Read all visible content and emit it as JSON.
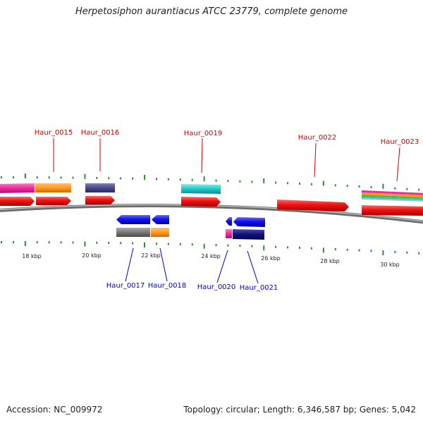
{
  "title": "Herpetosiphon aurantiacus ATCC 23779, complete genome",
  "footer": {
    "accession": "Accession: NC_009972",
    "summary": "Topology: circular; Length: 6,346,587 bp; Genes: 5,042"
  },
  "scale_labels": [
    "18 kbp",
    "20 kbp",
    "22 kbp",
    "24 kbp",
    "26 kbp",
    "28 kbp",
    "30 kbp"
  ],
  "genes_forward": [
    "Haur_0015",
    "Haur_0016",
    "Haur_0019",
    "Haur_0022",
    "Haur_0023"
  ],
  "genes_reverse": [
    "Haur_0017",
    "Haur_0018",
    "Haur_0020",
    "Haur_0021"
  ],
  "colors": {
    "forward_label": "#cc0000",
    "reverse_label": "#0000cc",
    "tick": "#2e8b2e",
    "backbone": "#808080",
    "gene_red": "#ee1111",
    "gene_blue": "#1111ee",
    "magenta": "#ee2a9a",
    "orange": "#ff9922",
    "slate": "#4a4a8c",
    "cyan": "#22c8c8",
    "gray": "#777777",
    "navy": "#111177"
  }
}
